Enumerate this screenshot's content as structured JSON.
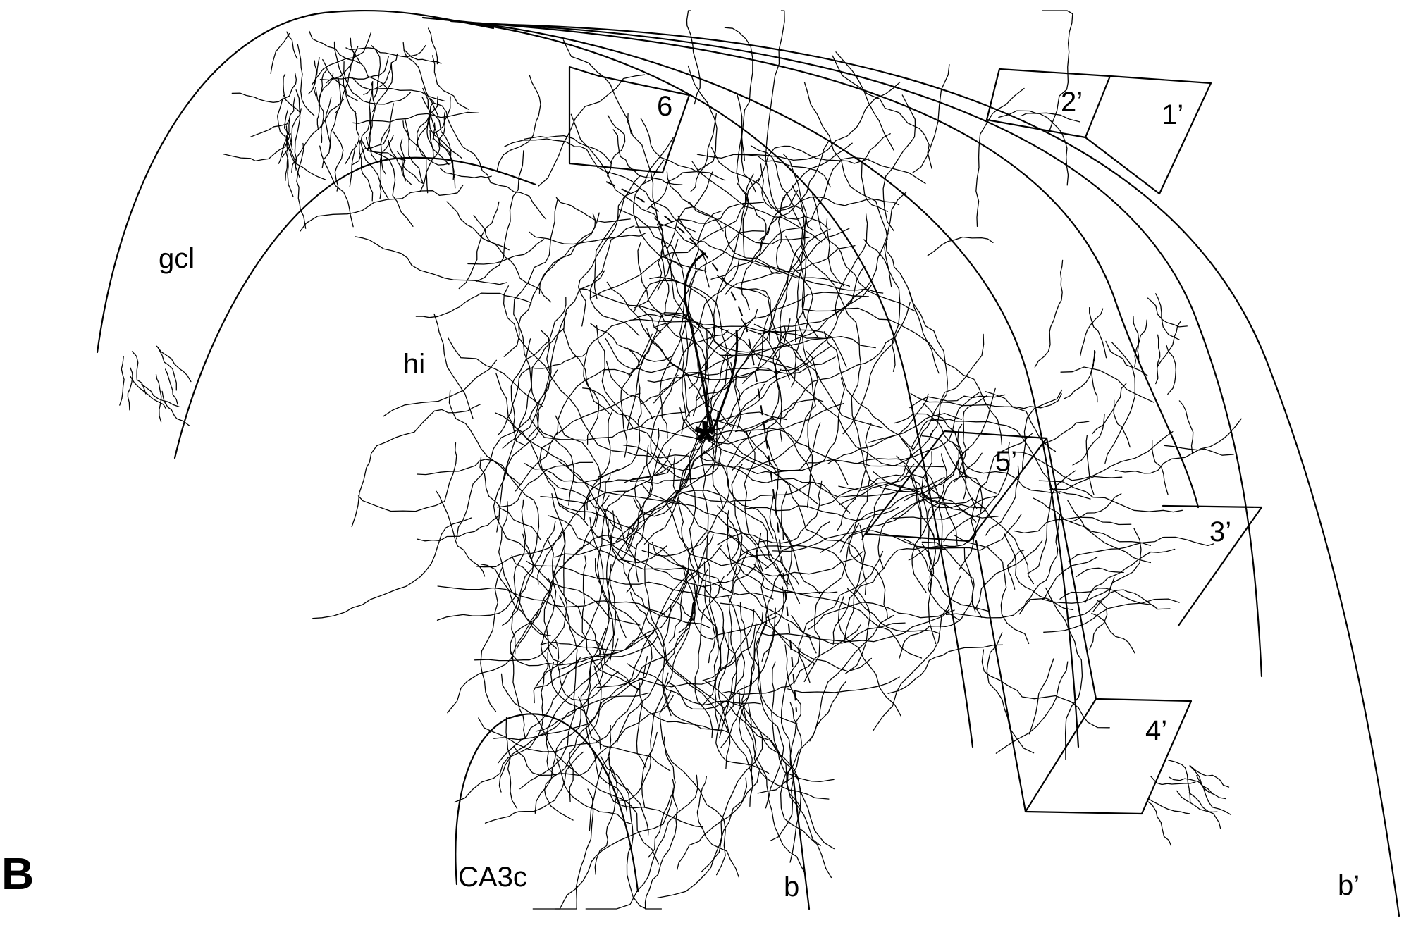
{
  "panel_label": "B",
  "soma_marker": "*",
  "region_labels": {
    "granule_cell_layer": "gcl",
    "hilus": "hi",
    "ca3c": "CA3c",
    "boundary_b": "b",
    "boundary_b_prime": "b’"
  },
  "section_labels": {
    "s6": "6",
    "s1p": "1’",
    "s2p": "2’",
    "s3p": "3’",
    "s4p": "4’",
    "s5p": "5’"
  },
  "colors": {
    "ink": "#000000",
    "background": "#ffffff"
  }
}
